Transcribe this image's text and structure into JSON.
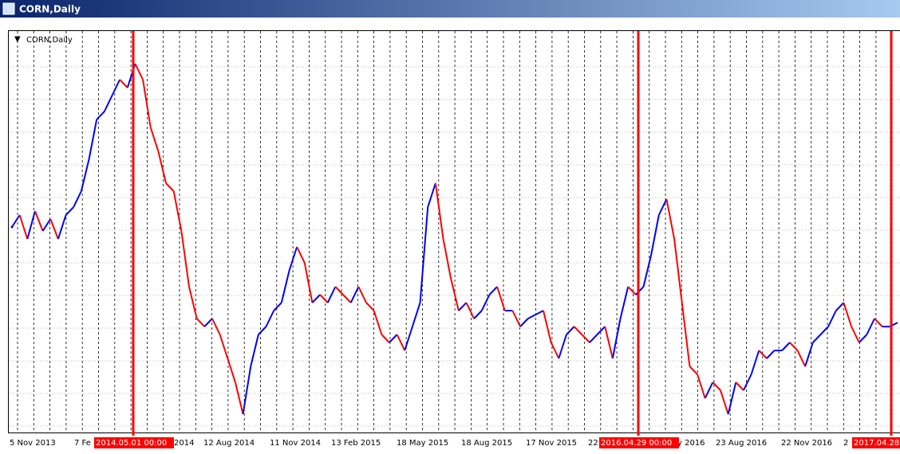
{
  "window_title": "CORN,Daily",
  "chart_data": {
    "type": "bar-line",
    "title": "CORN,Daily",
    "up_color": "#0000ff",
    "down_color": "#ff0000",
    "ylim": [
      0,
      100
    ],
    "values": [
      51,
      54,
      48,
      55,
      50,
      53,
      48,
      54,
      56,
      60,
      68,
      78,
      80,
      84,
      88,
      86,
      92,
      88,
      76,
      70,
      62,
      60,
      50,
      36,
      28,
      26,
      28,
      24,
      18,
      12,
      4,
      16,
      24,
      26,
      30,
      32,
      40,
      46,
      42,
      32,
      34,
      32,
      36,
      34,
      32,
      36,
      32,
      30,
      24,
      22,
      24,
      20,
      26,
      32,
      56,
      62,
      48,
      38,
      30,
      32,
      28,
      30,
      34,
      36,
      30,
      30,
      26,
      28,
      29,
      30,
      22,
      18,
      24,
      26,
      24,
      22,
      24,
      26,
      18,
      28,
      36,
      34,
      36,
      44,
      54,
      58,
      48,
      32,
      16,
      14,
      8,
      12,
      10,
      4,
      12,
      10,
      14,
      20,
      18,
      20,
      20,
      22,
      20,
      16,
      22,
      24,
      26,
      30,
      32,
      26,
      22,
      24,
      28,
      26,
      26,
      27
    ],
    "x_labels": [
      "5 Nov 2013",
      "7 Fe",
      "2014",
      "12 Aug 2014",
      "11 Nov 2014",
      "13 Feb 2015",
      "18 May 2015",
      "18 Aug 2015",
      "17 Nov 2015",
      "22",
      "y 2016",
      "23 Aug 2016",
      "22 Nov 2016",
      "2"
    ],
    "markers": [
      "2014.05.01 00:00",
      "2016.04.29 00:00",
      "2017.04.28"
    ],
    "marker_color": "#ff0000"
  }
}
